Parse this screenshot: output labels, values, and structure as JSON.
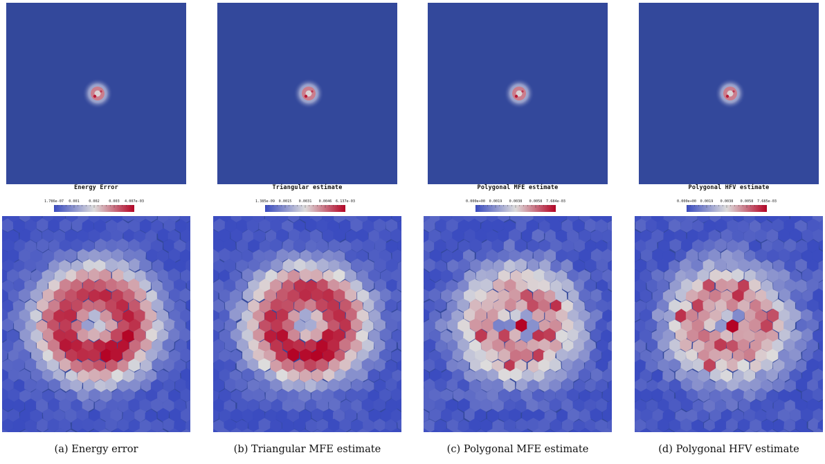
{
  "colors": {
    "background": "#33489b",
    "low": "#3b4cc0",
    "mid": "#dddcdc",
    "high": "#b40426"
  },
  "panels": [
    {
      "id": "a",
      "caption": "(a) Energy error",
      "colorbar": {
        "title": "Energy Error",
        "ticks": [
          "1.786e-07",
          "0.001",
          "0.002",
          "0.003",
          "4.007e-03"
        ]
      },
      "pattern": "ring"
    },
    {
      "id": "b",
      "caption": "(b) Triangular MFE estimate",
      "colorbar": {
        "title": "Triangular estimate",
        "ticks": [
          "1.385e-09",
          "0.0015",
          "0.0031",
          "0.0046",
          "6.137e-03"
        ]
      },
      "pattern": "ring"
    },
    {
      "id": "c",
      "caption": "(c) Polygonal MFE estimate",
      "colorbar": {
        "title": "Polygonal MFE estimate",
        "ticks": [
          "0.000e+00",
          "0.0019",
          "0.0038",
          "0.0058",
          "7.684e-03"
        ]
      },
      "pattern": "center"
    },
    {
      "id": "d",
      "caption": "(d) Polygonal HFV estimate",
      "colorbar": {
        "title": "Polygonal HFV estimate",
        "ticks": [
          "0.000e+00",
          "0.0019",
          "0.0038",
          "0.0058",
          "7.685e-03"
        ]
      },
      "pattern": "center"
    }
  ]
}
